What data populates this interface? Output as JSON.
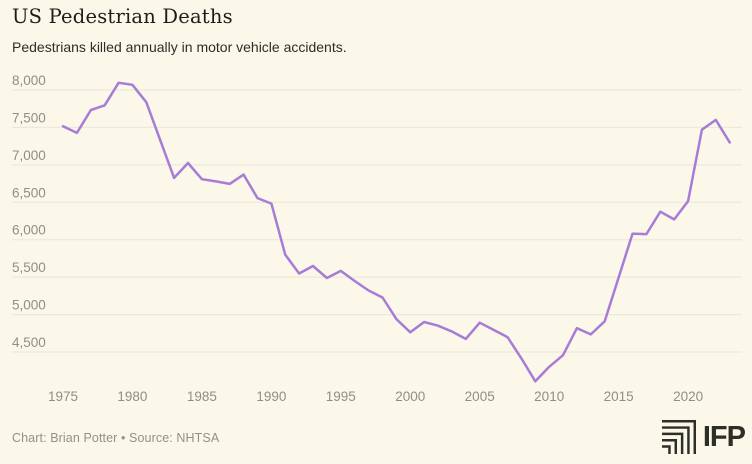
{
  "header": {
    "title": "US Pedestrian Deaths",
    "subtitle": "Pedestrians killed annually in motor vehicle accidents."
  },
  "footer": {
    "credit": "Chart: Brian Potter • Source: NHTSA",
    "logo_text": "IFP",
    "logo_icon": "nested-corner-angles-icon"
  },
  "colors": {
    "background": "#fbf7e9",
    "line": "#a77cd7",
    "grid": "#eae6d8",
    "axis_label": "#908e86",
    "title": "#1d1d19",
    "subtitle": "#2e2e28",
    "logo": "#2e2e28"
  },
  "chart_data": {
    "type": "line",
    "title": "US Pedestrian Deaths",
    "subtitle": "Pedestrians killed annually in motor vehicle accidents.",
    "series_name": "Pedestrian deaths",
    "xlabel": "",
    "ylabel": "",
    "legend": false,
    "grid": "horizontal",
    "x_ticks": [
      1975,
      1980,
      1985,
      1990,
      1995,
      2000,
      2005,
      2010,
      2015,
      2020
    ],
    "y_ticks": [
      4500,
      5000,
      5500,
      6000,
      6500,
      7000,
      7500,
      8000
    ],
    "ylim": [
      4050,
      8200
    ],
    "xlim": [
      1975,
      2023
    ],
    "x": [
      1975,
      1976,
      1977,
      1978,
      1979,
      1980,
      1981,
      1982,
      1983,
      1984,
      1985,
      1986,
      1987,
      1988,
      1989,
      1990,
      1991,
      1992,
      1993,
      1994,
      1995,
      1996,
      1997,
      1998,
      1999,
      2000,
      2001,
      2002,
      2003,
      2004,
      2005,
      2006,
      2007,
      2008,
      2009,
      2010,
      2011,
      2012,
      2013,
      2014,
      2015,
      2016,
      2017,
      2018,
      2019,
      2020,
      2021,
      2022,
      2023
    ],
    "values": [
      7516,
      7427,
      7732,
      7795,
      8096,
      8070,
      7837,
      7331,
      6826,
      7025,
      6808,
      6779,
      6745,
      6870,
      6556,
      6482,
      5801,
      5549,
      5649,
      5489,
      5584,
      5449,
      5321,
      5228,
      4939,
      4763,
      4901,
      4851,
      4774,
      4675,
      4892,
      4795,
      4699,
      4414,
      4109,
      4302,
      4457,
      4818,
      4735,
      4910,
      5494,
      6080,
      6075,
      6374,
      6272,
      6516,
      7470,
      7600,
      7300
    ]
  }
}
